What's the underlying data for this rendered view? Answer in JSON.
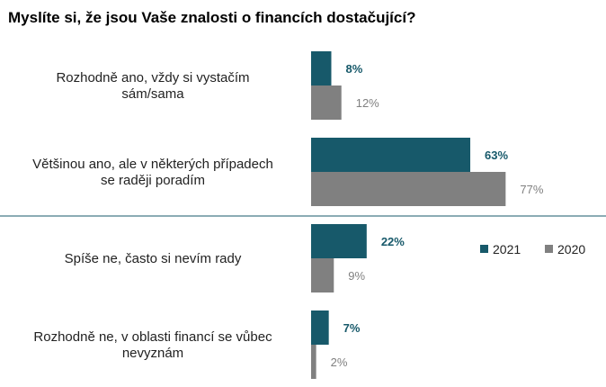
{
  "chart_data": {
    "type": "bar",
    "orientation": "horizontal",
    "title": "Myslíte si, že jsou Vaše znalosti o financích dostačující?",
    "categories": [
      [
        "Rozhodně ano, vždy si vystačím",
        "sám/sama"
      ],
      [
        "Většinou ano, ale v některých případech",
        "se raději poradím"
      ],
      [
        "Spíše ne, často si nevím rady"
      ],
      [
        "Rozhodně ne, v oblasti financí se vůbec",
        "nevyznám"
      ]
    ],
    "series": [
      {
        "name": "2021",
        "values": [
          8,
          63,
          22,
          7
        ],
        "labels": [
          "8%",
          "63%",
          "22%",
          "7%"
        ],
        "color": "#17596a"
      },
      {
        "name": "2020",
        "values": [
          12,
          77,
          9,
          2
        ],
        "labels": [
          "12%",
          "77%",
          "9%",
          "2%"
        ],
        "color": "#808080"
      }
    ],
    "xlim": [
      0,
      100
    ],
    "divider_after_category": 1,
    "divider_color": "#17596a",
    "legend": "right"
  }
}
